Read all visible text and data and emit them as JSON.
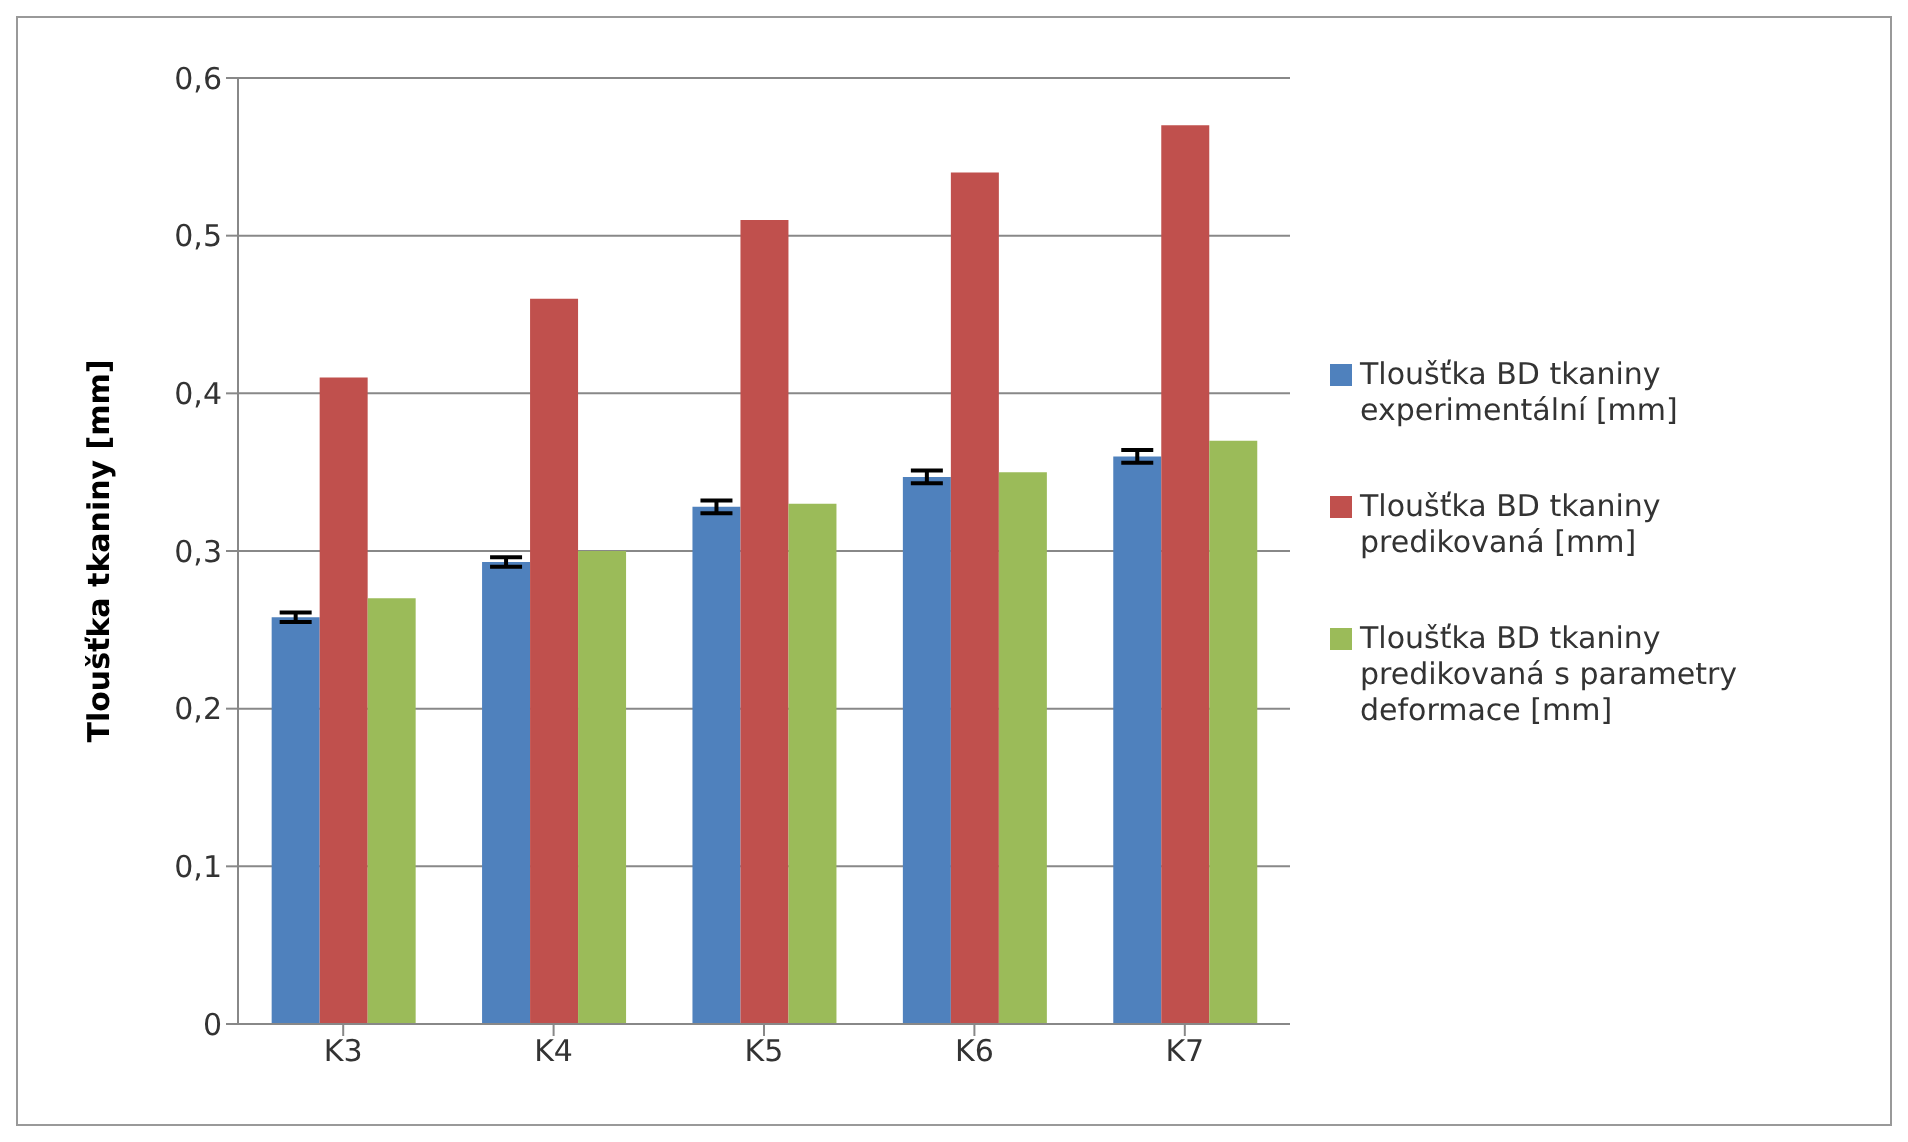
{
  "chart_data": {
    "type": "bar",
    "ylabel": "Tloušťka tkaniny [mm]",
    "categories": [
      "K3",
      "K4",
      "K5",
      "K6",
      "K7"
    ],
    "series": [
      {
        "name": "Tloušťka BD tkaniny experimentální [mm]",
        "color": "#4f81bd",
        "values": [
          0.258,
          0.293,
          0.328,
          0.347,
          0.36
        ],
        "errors": [
          0.003,
          0.003,
          0.004,
          0.004,
          0.004
        ]
      },
      {
        "name": "Tloušťka BD tkaniny predikovaná [mm]",
        "color": "#c0504d",
        "values": [
          0.41,
          0.46,
          0.51,
          0.54,
          0.57
        ]
      },
      {
        "name": "Tloušťka BD tkaniny predikovaná s parametry deformace [mm]",
        "color": "#9bbb59",
        "values": [
          0.27,
          0.3,
          0.33,
          0.35,
          0.37
        ]
      }
    ],
    "ylim": [
      0,
      0.6
    ],
    "yticks": [
      {
        "value": 0,
        "label": "0"
      },
      {
        "value": 0.1,
        "label": "0,1"
      },
      {
        "value": 0.2,
        "label": "0,2"
      },
      {
        "value": 0.3,
        "label": "0,3"
      },
      {
        "value": 0.4,
        "label": "0,4"
      },
      {
        "value": 0.5,
        "label": "0,5"
      },
      {
        "value": 0.6,
        "label": "0,6"
      }
    ],
    "grid": "y",
    "legend": "right"
  }
}
